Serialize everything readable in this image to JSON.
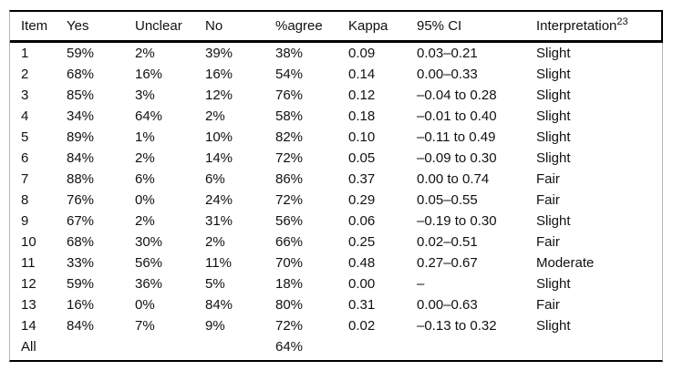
{
  "page": {
    "background": "#ffffff"
  },
  "table": {
    "columns": [
      {
        "key": "item",
        "label": "Item"
      },
      {
        "key": "yes",
        "label": "Yes"
      },
      {
        "key": "unclear",
        "label": "Unclear"
      },
      {
        "key": "no",
        "label": "No"
      },
      {
        "key": "agree",
        "label": "%agree"
      },
      {
        "key": "kappa",
        "label": "Kappa"
      },
      {
        "key": "ci",
        "label": "95% CI"
      },
      {
        "key": "interpretation",
        "label": "Interpretation",
        "sup": "23"
      }
    ],
    "rows": [
      {
        "item": "1",
        "yes": "59%",
        "unclear": "2%",
        "no": "39%",
        "agree": "38%",
        "kappa": "0.09",
        "ci": "0.03–0.21",
        "interpretation": "Slight"
      },
      {
        "item": "2",
        "yes": "68%",
        "unclear": "16%",
        "no": "16%",
        "agree": "54%",
        "kappa": "0.14",
        "ci": "0.00–0.33",
        "interpretation": "Slight"
      },
      {
        "item": "3",
        "yes": "85%",
        "unclear": "3%",
        "no": "12%",
        "agree": "76%",
        "kappa": "0.12",
        "ci": "–0.04 to 0.28",
        "interpretation": "Slight"
      },
      {
        "item": "4",
        "yes": "34%",
        "unclear": "64%",
        "no": "2%",
        "agree": "58%",
        "kappa": "0.18",
        "ci": "–0.01 to 0.40",
        "interpretation": "Slight"
      },
      {
        "item": "5",
        "yes": "89%",
        "unclear": "1%",
        "no": "10%",
        "agree": "82%",
        "kappa": "0.10",
        "ci": "–0.11 to 0.49",
        "interpretation": "Slight"
      },
      {
        "item": "6",
        "yes": "84%",
        "unclear": "2%",
        "no": "14%",
        "agree": "72%",
        "kappa": "0.05",
        "ci": "–0.09 to 0.30",
        "interpretation": "Slight"
      },
      {
        "item": "7",
        "yes": "88%",
        "unclear": "6%",
        "no": "6%",
        "agree": "86%",
        "kappa": "0.37",
        "ci": "0.00 to 0.74",
        "interpretation": "Fair"
      },
      {
        "item": "8",
        "yes": "76%",
        "unclear": "0%",
        "no": "24%",
        "agree": "72%",
        "kappa": "0.29",
        "ci": "0.05–0.55",
        "interpretation": "Fair"
      },
      {
        "item": "9",
        "yes": "67%",
        "unclear": "2%",
        "no": "31%",
        "agree": "56%",
        "kappa": "0.06",
        "ci": "–0.19 to 0.30",
        "interpretation": "Slight"
      },
      {
        "item": "10",
        "yes": "68%",
        "unclear": "30%",
        "no": "2%",
        "agree": "66%",
        "kappa": "0.25",
        "ci": "0.02–0.51",
        "interpretation": "Fair"
      },
      {
        "item": "11",
        "yes": "33%",
        "unclear": "56%",
        "no": "11%",
        "agree": "70%",
        "kappa": "0.48",
        "ci": "0.27–0.67",
        "interpretation": "Moderate"
      },
      {
        "item": "12",
        "yes": "59%",
        "unclear": "36%",
        "no": "5%",
        "agree": "18%",
        "kappa": "0.00",
        "ci": "–",
        "interpretation": "Slight"
      },
      {
        "item": "13",
        "yes": "16%",
        "unclear": "0%",
        "no": "84%",
        "agree": "80%",
        "kappa": "0.31",
        "ci": "0.00–0.63",
        "interpretation": "Fair"
      },
      {
        "item": "14",
        "yes": "84%",
        "unclear": "7%",
        "no": "9%",
        "agree": "72%",
        "kappa": "0.02",
        "ci": "–0.13 to 0.32",
        "interpretation": "Slight"
      },
      {
        "item": "All",
        "yes": "",
        "unclear": "",
        "no": "",
        "agree": "64%",
        "kappa": "",
        "ci": "",
        "interpretation": ""
      }
    ],
    "colors": {
      "rule": "#000000",
      "outer_border": "#b3b3b3",
      "text": "#111111"
    }
  }
}
